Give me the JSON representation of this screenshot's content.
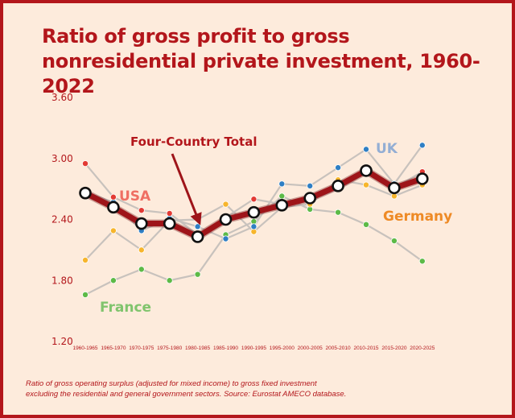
{
  "chart_data": {
    "type": "line",
    "title": "Ratio of gross profit to gross nonresidential private investment, 1960-2022",
    "categories": [
      "1960-1965",
      "1965-1970",
      "1970-1975",
      "1975-1980",
      "1980-1985",
      "1985-1990",
      "1990-1995",
      "1995-2000",
      "2000-2005",
      "2005-2010",
      "2010-2015",
      "2015-2020",
      "2020-2025"
    ],
    "y_ticks": [
      "1.20",
      "1.80",
      "2.40",
      "3.00",
      "3.60"
    ],
    "ylim": [
      1.2,
      3.6
    ],
    "grid": false,
    "series": [
      {
        "name": "France",
        "color": "#5dba47",
        "values": [
          1.66,
          1.8,
          1.91,
          1.8,
          1.86,
          2.25,
          2.38,
          2.63,
          2.5,
          2.47,
          2.35,
          2.19,
          1.99
        ]
      },
      {
        "name": "Germany",
        "color": "#f7b52c",
        "values": [
          2.0,
          2.29,
          2.1,
          2.39,
          2.4,
          2.55,
          2.28,
          2.52,
          2.55,
          2.79,
          2.74,
          2.63,
          2.74
        ]
      },
      {
        "name": "UK",
        "color": "#2f7fc4",
        "values": [
          2.67,
          2.57,
          2.29,
          2.41,
          2.33,
          2.21,
          2.33,
          2.75,
          2.73,
          2.91,
          3.09,
          2.75,
          3.13
        ]
      },
      {
        "name": "USA",
        "color": "#e23a34",
        "values": [
          2.95,
          2.62,
          2.49,
          2.46,
          2.25,
          2.42,
          2.6,
          2.55,
          2.59,
          2.7,
          2.86,
          2.71,
          2.87
        ]
      },
      {
        "name": "Four-Country Total",
        "color": "#9e1419",
        "values": [
          2.66,
          2.52,
          2.36,
          2.36,
          2.23,
          2.4,
          2.47,
          2.54,
          2.61,
          2.73,
          2.88,
          2.71,
          2.8
        ]
      }
    ],
    "series_labels": {
      "usa": "USA",
      "uk": "UK",
      "germany": "Germany",
      "france": "France"
    },
    "annotation": "Four-Country Total"
  },
  "footnote": {
    "line1": "Ratio of gross operating surplus (adjusted for mixed income) to gross fixed investment",
    "line2": "excluding the residential and general government sectors. Source: Eurostat AMECO database."
  }
}
